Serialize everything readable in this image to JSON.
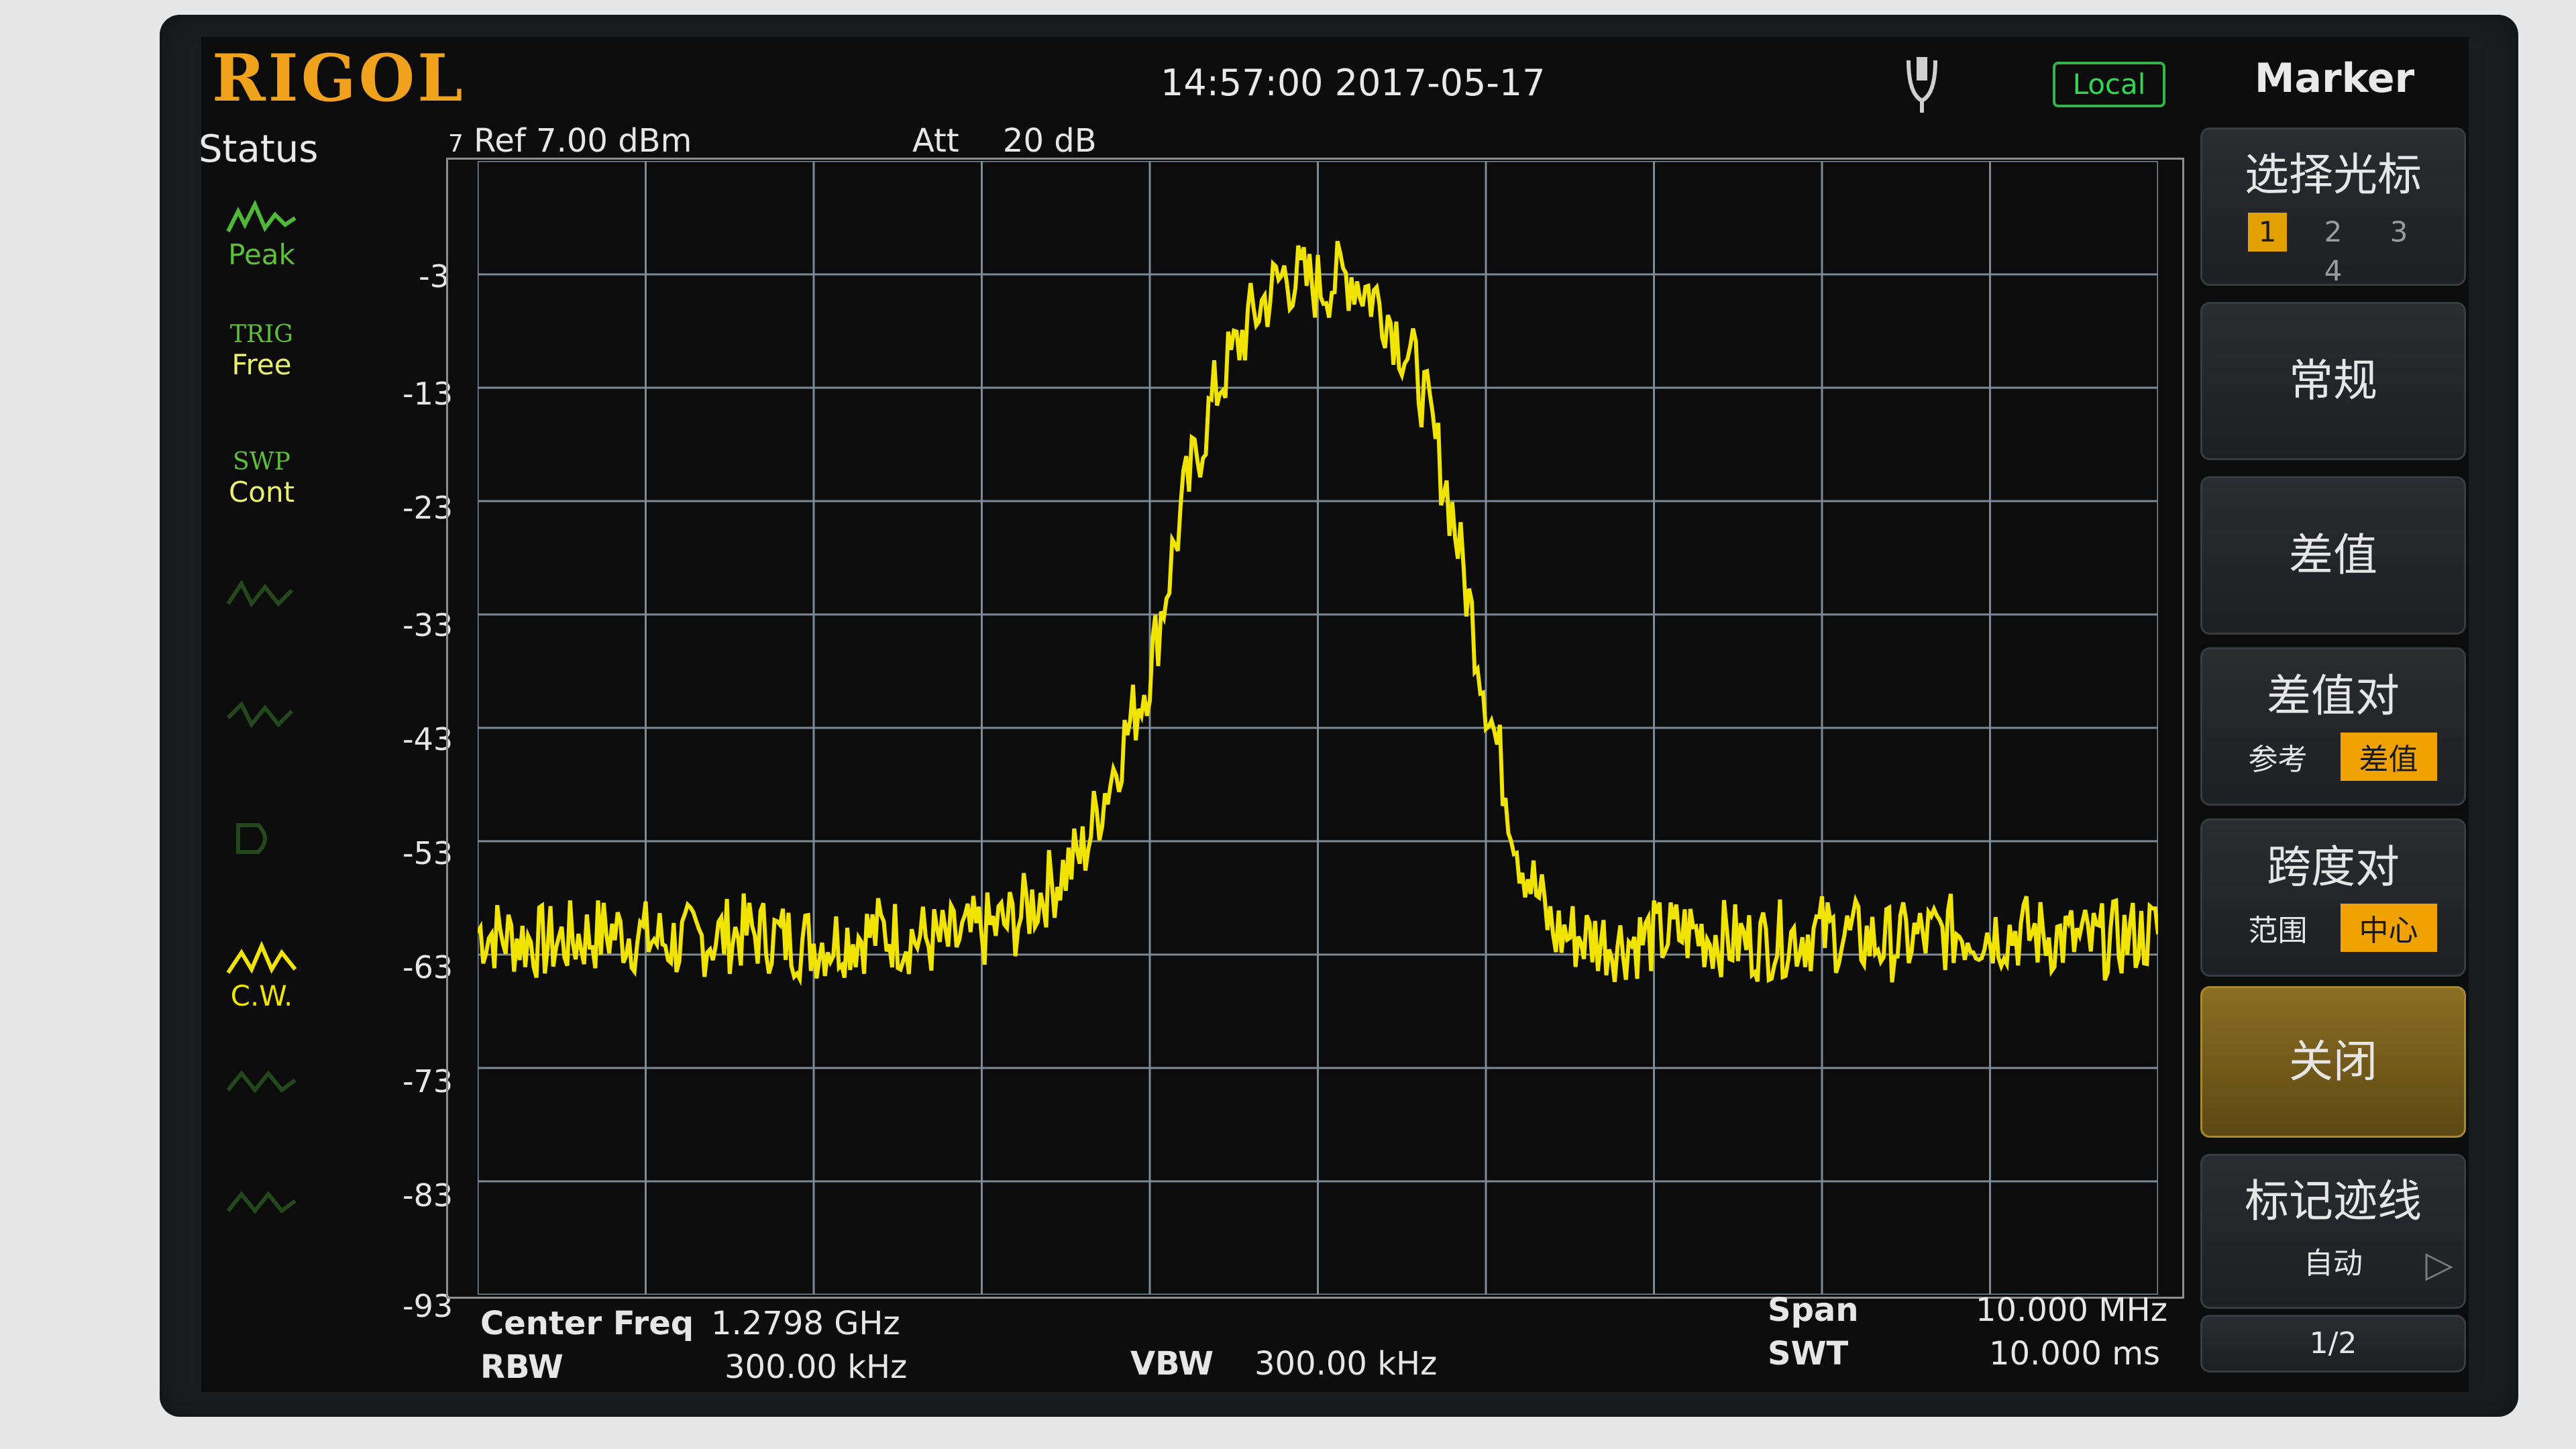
{
  "brand": "RIGOL",
  "datetime": "14:57:00 2017-05-17",
  "remote_status": "Local",
  "status_panel": {
    "title": "Status",
    "items": [
      {
        "top": "",
        "bottom": "Peak"
      },
      {
        "top": "TRIG",
        "bottom": "Free"
      },
      {
        "top": "SWP",
        "bottom": "Cont"
      },
      {
        "top": "",
        "bottom": "C.W."
      }
    ]
  },
  "plot": {
    "ref_label": "Ref",
    "ref_value": "7.00 dBm",
    "att_label": "Att",
    "att_value": "20 dB",
    "top_scale": "7",
    "y_labels": [
      "-3",
      "-13",
      "-23",
      "-33",
      "-43",
      "-53",
      "-63",
      "-73",
      "-83",
      "-93"
    ],
    "trace_color": "#f0e400",
    "grid_color": "#7c8a96"
  },
  "bottom": {
    "center_freq_label": "Center Freq",
    "center_freq_value": "1.2798 GHz",
    "rbw_label": "RBW",
    "rbw_value": "300.00 kHz",
    "vbw_label": "VBW",
    "vbw_value": "300.00 kHz",
    "span_label": "Span",
    "span_value": "10.000 MHz",
    "swt_label": "SWT",
    "swt_value": "10.000 ms"
  },
  "menu": {
    "title": "Marker",
    "select_label": "选择光标",
    "marker_numbers": [
      "1",
      "2",
      "3",
      "4"
    ],
    "normal": "常规",
    "delta": "差值",
    "delta_pair": "差值对",
    "delta_pair_opts": [
      "参考",
      "差值"
    ],
    "span_pair": "跨度对",
    "span_pair_opts": [
      "范围",
      "中心"
    ],
    "off": "关闭",
    "mark_trace": "标记迹线",
    "mark_trace_value": "自动",
    "page": "1/2"
  },
  "chart_data": {
    "type": "line",
    "title": "",
    "xlabel": "",
    "ylabel": "",
    "x_range_mhz": [
      1274.8,
      1284.8
    ],
    "ylim": [
      -93,
      7
    ],
    "y_unit": "dBm",
    "series": [
      {
        "x": [
          1274.8,
          1275.2,
          1275.6,
          1276.0,
          1276.4,
          1276.8,
          1277.2,
          1277.6,
          1278.0,
          1278.4,
          1278.8,
          1279.0,
          1279.2,
          1279.4,
          1279.6,
          1279.8,
          1280.0,
          1280.2,
          1280.4,
          1280.6,
          1280.8,
          1281.0,
          1281.2,
          1281.6,
          1282.0,
          1282.4,
          1282.8,
          1283.2,
          1283.6,
          1284.0,
          1284.4,
          1284.8
        ],
        "values": [
          -61,
          -62,
          -61,
          -62,
          -61,
          -62,
          -61,
          -62,
          -60,
          -54,
          -38,
          -23,
          -13,
          -7,
          -3,
          -4,
          -3,
          -6,
          -12,
          -24,
          -40,
          -54,
          -61,
          -62,
          -61,
          -62,
          -61,
          -62,
          -61,
          -61,
          -62,
          -61
        ]
      }
    ]
  }
}
